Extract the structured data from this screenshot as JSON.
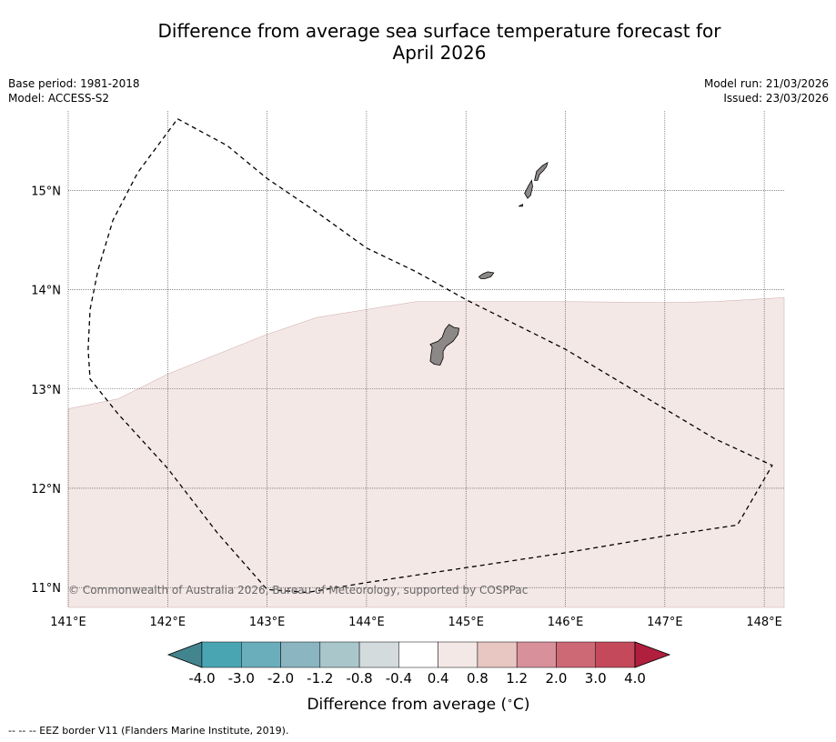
{
  "title": {
    "line1": "Difference from average sea surface temperature forecast for",
    "line2": "April 2026"
  },
  "meta": {
    "base_period": "Base period: 1981-2018",
    "model": "Model: ACCESS-S2",
    "model_run": "Model run: 21/03/2026",
    "issued": "Issued: 23/03/2026"
  },
  "map": {
    "lon_range": [
      141.0,
      148.2
    ],
    "lat_range": [
      10.8,
      15.8
    ],
    "lon_ticks": [
      {
        "value": 141,
        "label": "141°E"
      },
      {
        "value": 142,
        "label": "142°E"
      },
      {
        "value": 143,
        "label": "143°E"
      },
      {
        "value": 144,
        "label": "144°E"
      },
      {
        "value": 145,
        "label": "145°E"
      },
      {
        "value": 146,
        "label": "146°E"
      },
      {
        "value": 147,
        "label": "147°E"
      },
      {
        "value": 148,
        "label": "148°E"
      }
    ],
    "lat_ticks": [
      {
        "value": 11,
        "label": "11°N"
      },
      {
        "value": 12,
        "label": "12°N"
      },
      {
        "value": 13,
        "label": "13°N"
      },
      {
        "value": 14,
        "label": "14°N"
      },
      {
        "value": 15,
        "label": "15°N"
      }
    ],
    "anomaly_region": {
      "category": "0.4 to 0.8",
      "color": "#f4e8e7",
      "boundary_lonlat": [
        [
          141.0,
          12.8
        ],
        [
          141.5,
          12.9
        ],
        [
          142.0,
          13.15
        ],
        [
          142.5,
          13.35
        ],
        [
          143.0,
          13.55
        ],
        [
          143.5,
          13.72
        ],
        [
          144.0,
          13.8
        ],
        [
          144.5,
          13.88
        ],
        [
          145.0,
          13.88
        ],
        [
          146.0,
          13.88
        ],
        [
          147.0,
          13.87
        ],
        [
          147.5,
          13.88
        ],
        [
          148.2,
          13.92
        ]
      ]
    },
    "islands": [
      {
        "name": "Guam",
        "color": "#8c8887",
        "outline_lonlat": [
          [
            144.64,
            13.45
          ],
          [
            144.72,
            13.48
          ],
          [
            144.76,
            13.52
          ],
          [
            144.79,
            13.6
          ],
          [
            144.83,
            13.65
          ],
          [
            144.88,
            13.62
          ],
          [
            144.93,
            13.61
          ],
          [
            144.92,
            13.55
          ],
          [
            144.87,
            13.48
          ],
          [
            144.8,
            13.43
          ],
          [
            144.77,
            13.38
          ],
          [
            144.77,
            13.31
          ],
          [
            144.74,
            13.24
          ],
          [
            144.68,
            13.25
          ],
          [
            144.64,
            13.28
          ],
          [
            144.65,
            13.36
          ],
          [
            144.66,
            13.42
          ]
        ]
      },
      {
        "name": "Rota",
        "color": "#8c8887",
        "outline_lonlat": [
          [
            145.13,
            14.13
          ],
          [
            145.17,
            14.16
          ],
          [
            145.22,
            14.18
          ],
          [
            145.28,
            14.17
          ],
          [
            145.25,
            14.13
          ],
          [
            145.19,
            14.11
          ],
          [
            145.15,
            14.11
          ]
        ]
      },
      {
        "name": "Tinian",
        "color": "#8c8887",
        "outline_lonlat": [
          [
            145.59,
            14.97
          ],
          [
            145.63,
            15.05
          ],
          [
            145.66,
            15.1
          ],
          [
            145.67,
            15.04
          ],
          [
            145.65,
            14.95
          ],
          [
            145.62,
            14.92
          ]
        ]
      },
      {
        "name": "Saipan",
        "color": "#8c8887",
        "outline_lonlat": [
          [
            145.69,
            15.1
          ],
          [
            145.71,
            15.19
          ],
          [
            145.77,
            15.25
          ],
          [
            145.82,
            15.28
          ],
          [
            145.81,
            15.24
          ],
          [
            145.78,
            15.2
          ],
          [
            145.74,
            15.16
          ],
          [
            145.72,
            15.1
          ]
        ]
      },
      {
        "name": "Aguijan",
        "color": "#8c8887",
        "outline_lonlat": [
          [
            145.53,
            14.84
          ],
          [
            145.57,
            14.86
          ],
          [
            145.57,
            14.84
          ]
        ]
      }
    ],
    "eez_border_lonlat": [
      [
        142.1,
        15.72
      ],
      [
        142.6,
        15.45
      ],
      [
        143.0,
        15.12
      ],
      [
        143.5,
        14.78
      ],
      [
        144.0,
        14.42
      ],
      [
        144.5,
        14.18
      ],
      [
        145.0,
        13.9
      ],
      [
        145.5,
        13.65
      ],
      [
        146.0,
        13.4
      ],
      [
        146.5,
        13.1
      ],
      [
        147.0,
        12.8
      ],
      [
        147.5,
        12.5
      ],
      [
        148.08,
        12.23
      ],
      [
        147.73,
        11.63
      ],
      [
        147.0,
        11.52
      ],
      [
        146.0,
        11.35
      ],
      [
        145.0,
        11.2
      ],
      [
        144.0,
        11.05
      ],
      [
        143.4,
        10.95
      ],
      [
        143.0,
        10.98
      ],
      [
        142.5,
        11.55
      ],
      [
        142.0,
        12.2
      ],
      [
        141.5,
        12.75
      ],
      [
        141.22,
        13.1
      ],
      [
        141.2,
        13.4
      ],
      [
        141.22,
        13.8
      ],
      [
        141.3,
        14.2
      ],
      [
        141.45,
        14.7
      ],
      [
        141.7,
        15.18
      ],
      [
        142.1,
        15.72
      ]
    ]
  },
  "copyright": "© Commonwealth of Australia 2026, Bureau of Meteorology, supported by COSPPac",
  "colorbar": {
    "labels": [
      "-4.0",
      "-3.0",
      "-2.0",
      "-1.2",
      "-0.8",
      "-0.4",
      "0.4",
      "0.8",
      "1.2",
      "2.0",
      "3.0",
      "4.0"
    ],
    "colors": [
      "#4aa5b3",
      "#6aaebc",
      "#8ab5c1",
      "#a9c6cb",
      "#d3dbdd",
      "#ffffff",
      "#f4e8e7",
      "#e8c6c2",
      "#d8909a",
      "#cd6975",
      "#c44a5b"
    ],
    "min_extend_color": "#43858f",
    "max_extend_color": "#b01f3e",
    "title": "Difference from average ($^\\circ$C)"
  },
  "footnote": "-- -- -- EEZ border V11 (Flanders Marine Institute, 2019)."
}
